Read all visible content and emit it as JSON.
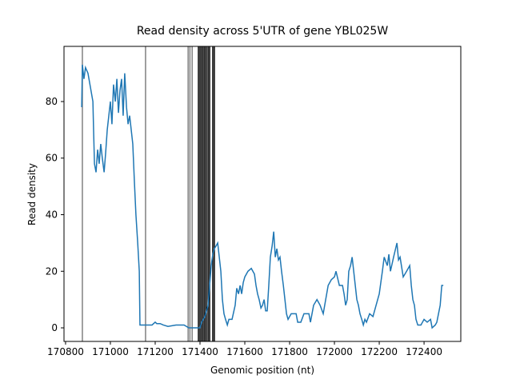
{
  "chart_data": {
    "type": "line",
    "title": "Read density across 5'UTR of gene YBL025W",
    "x_label": "Genomic position (nt)",
    "y_label": "Read density",
    "xlim": [
      170793,
      172564
    ],
    "ylim": [
      -4.8,
      99.5
    ],
    "xticks": [
      170800,
      171000,
      171200,
      171400,
      171600,
      171800,
      172000,
      172200,
      172400
    ],
    "yticks": [
      0,
      20,
      40,
      60,
      80
    ],
    "vlines": [
      {
        "x": 170875,
        "color": "#808080"
      },
      {
        "x": 171157,
        "color": "#808080"
      },
      {
        "x": 171347,
        "color": "#808080"
      },
      {
        "x": 171355,
        "color": "#808080"
      },
      {
        "x": 171365,
        "color": "#808080"
      },
      {
        "x": 171393,
        "color": "#000000"
      },
      {
        "x": 171400,
        "color": "#000000"
      },
      {
        "x": 171407,
        "color": "#000000"
      },
      {
        "x": 171414,
        "color": "#000000"
      },
      {
        "x": 171421,
        "color": "#000000"
      },
      {
        "x": 171428,
        "color": "#000000"
      },
      {
        "x": 171436,
        "color": "#000000"
      },
      {
        "x": 171443,
        "color": "#000000"
      },
      {
        "x": 171457,
        "color": "#000000"
      },
      {
        "x": 171464,
        "color": "#000000"
      }
    ],
    "series": [
      {
        "color": "#1f77b4",
        "x": [
          170872,
          170875,
          170882,
          170889,
          170900,
          170911,
          170922,
          170925,
          170929,
          170936,
          170943,
          170950,
          170957,
          170964,
          170972,
          170979,
          170986,
          170993,
          171000,
          171007,
          171014,
          171022,
          171029,
          171036,
          171043,
          171050,
          171057,
          171064,
          171072,
          171079,
          171086,
          171093,
          171100,
          171107,
          171114,
          171122,
          171129,
          171132,
          171143,
          171157,
          171186,
          171200,
          171207,
          171222,
          171236,
          171257,
          171293,
          171329,
          171350,
          171382,
          171400,
          171407,
          171422,
          171436,
          171443,
          171450,
          171457,
          171464,
          171472,
          171479,
          171486,
          171493,
          171500,
          171507,
          171514,
          171522,
          171529,
          171543,
          171557,
          171564,
          171572,
          171579,
          171586,
          171593,
          171600,
          171614,
          171629,
          171636,
          171643,
          171650,
          171657,
          171664,
          171672,
          171679,
          171686,
          171693,
          171700,
          171707,
          171714,
          171722,
          171729,
          171736,
          171743,
          171750,
          171757,
          171764,
          171772,
          171779,
          171786,
          171793,
          171807,
          171829,
          171836,
          171850,
          171864,
          171886,
          171893,
          171907,
          171922,
          171936,
          171950,
          171972,
          171986,
          172000,
          172007,
          172022,
          172036,
          172043,
          172050,
          172057,
          172064,
          172072,
          172079,
          172086,
          172100,
          172107,
          172114,
          172122,
          172129,
          172136,
          172143,
          172157,
          172172,
          172186,
          172200,
          172214,
          172222,
          172236,
          172243,
          172250,
          172264,
          172279,
          172286,
          172293,
          172307,
          172322,
          172336,
          172343,
          172350,
          172357,
          172364,
          172372,
          172386,
          172400,
          172414,
          172429,
          172436,
          172450,
          172457,
          172472,
          172479,
          172486
        ],
        "values": [
          78,
          93,
          88,
          92,
          90,
          85,
          80,
          70,
          58,
          55,
          63,
          58,
          65,
          60,
          55,
          62,
          70,
          75,
          80,
          72,
          86,
          80,
          88,
          76,
          84,
          88,
          75,
          90,
          78,
          72,
          75,
          70,
          65,
          52,
          40,
          30,
          20,
          1,
          1,
          1,
          1,
          2,
          1.5,
          1.5,
          1,
          0.5,
          1,
          1,
          0,
          0,
          0,
          2,
          4,
          8,
          15,
          22,
          26,
          28,
          29,
          30,
          25,
          20,
          10,
          5,
          3,
          1,
          3,
          3,
          8,
          14,
          12,
          15,
          12,
          16,
          18,
          20,
          21,
          20,
          19,
          15,
          12,
          10,
          7,
          8,
          10,
          6,
          6,
          15,
          25,
          29,
          34,
          25,
          28,
          24,
          25,
          20,
          15,
          10,
          5,
          3,
          5,
          5,
          2,
          2,
          5,
          5,
          2,
          8,
          10,
          8,
          5,
          15,
          17,
          18,
          20,
          15,
          15,
          12,
          8,
          10,
          20,
          22,
          25,
          20,
          10,
          8,
          5,
          3,
          1,
          3,
          2,
          5,
          4,
          8,
          12,
          20,
          25,
          22,
          26,
          20,
          25,
          30,
          24,
          25,
          18,
          20,
          22,
          15,
          10,
          8,
          3,
          1,
          1,
          3,
          2,
          3,
          0,
          1,
          2,
          8,
          15,
          15
        ]
      }
    ]
  }
}
